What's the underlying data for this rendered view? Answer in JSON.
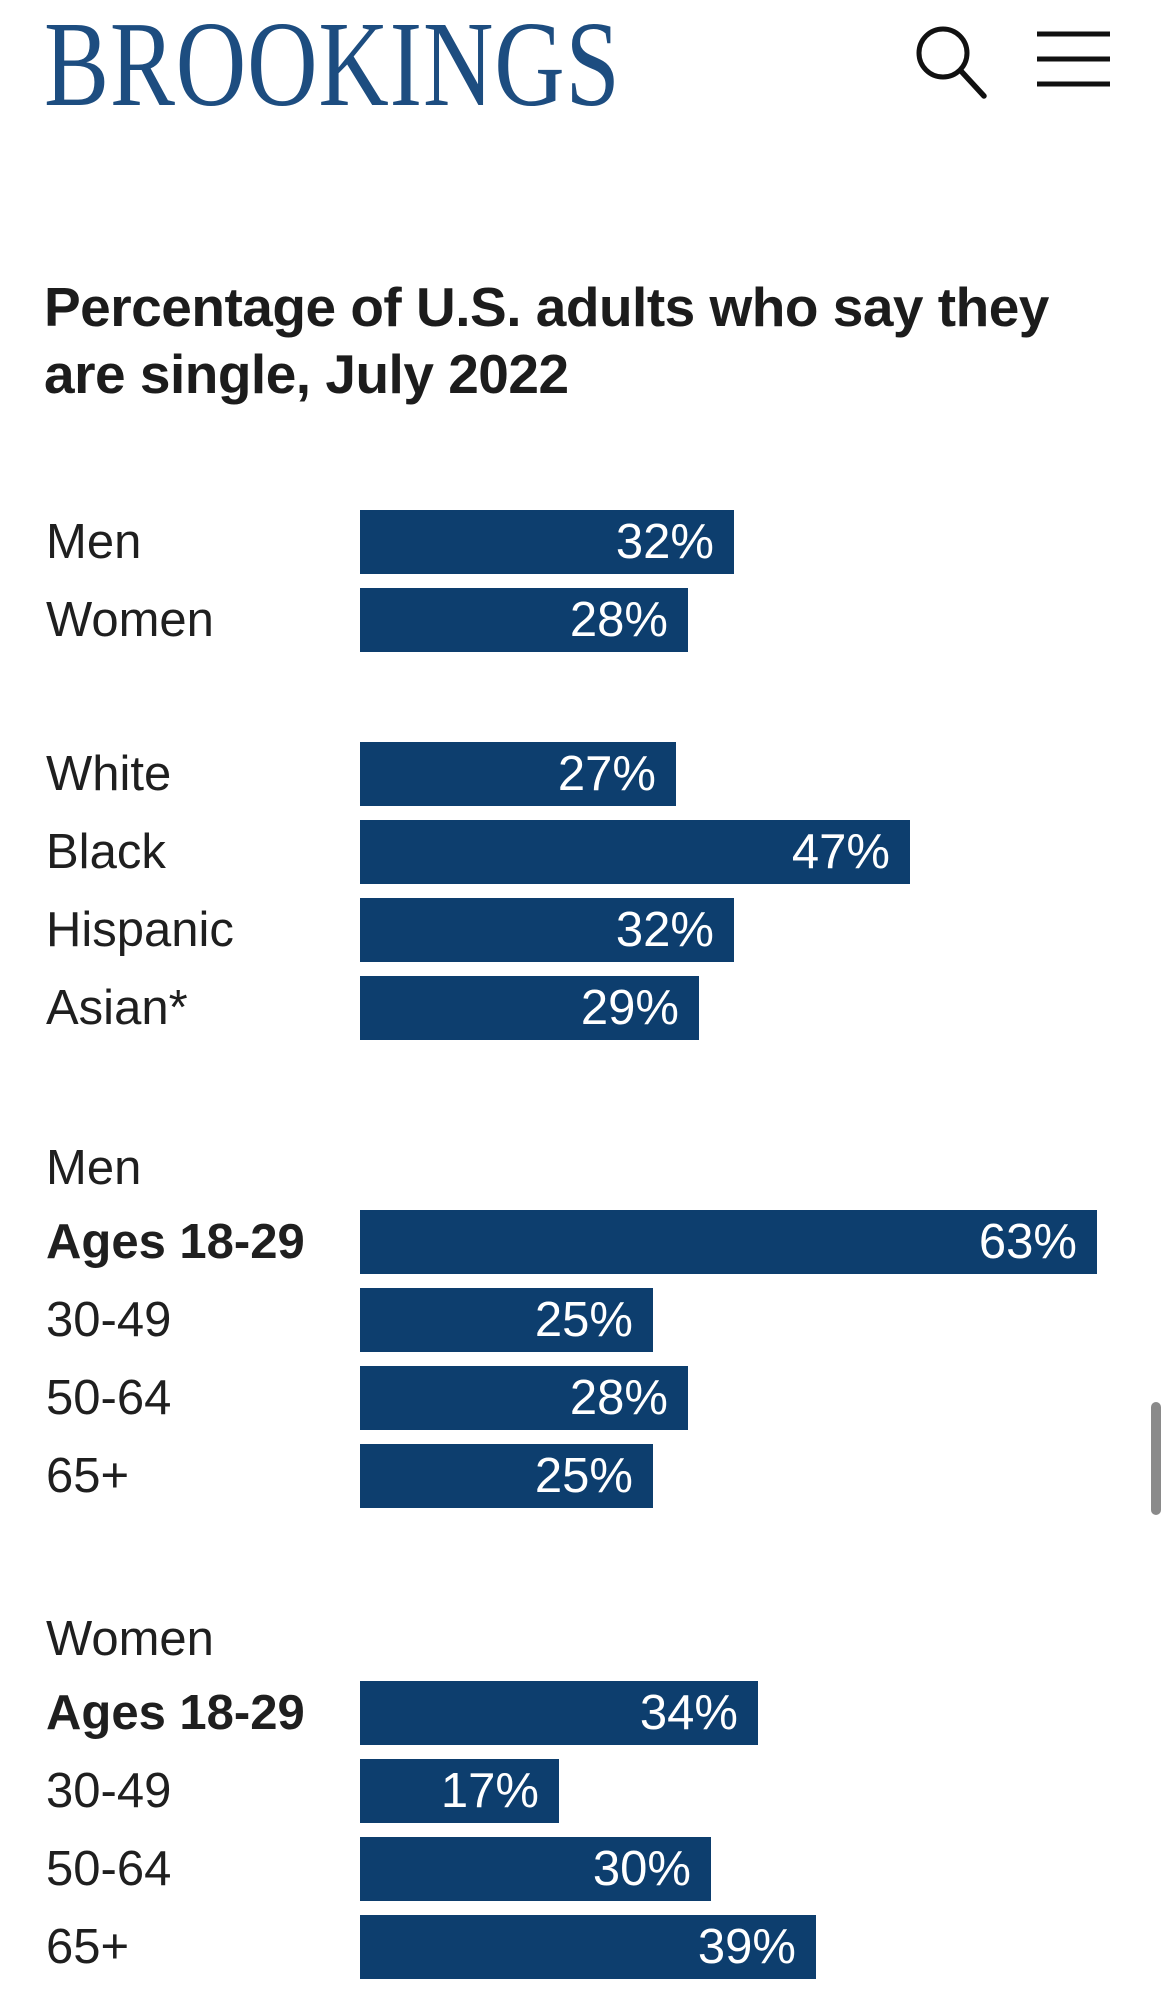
{
  "header": {
    "logo_text": "BROOKINGS",
    "search_icon": "search-icon",
    "menu_icon": "hamburger-menu-icon"
  },
  "title": {
    "full": "Percentage of U.S. adults who say they are single, July 2022",
    "line1": "Percentage of U.S. adults who say they",
    "line2": "are single, July 2022"
  },
  "chart_data": {
    "type": "bar",
    "orientation": "horizontal",
    "title": "Percentage of U.S. adults who say they are single, July 2022",
    "unit": "%",
    "xlim": [
      0,
      63
    ],
    "bar_color": "#0d3e6e",
    "value_label_color": "#ffffff",
    "value_label_position": "inside-right",
    "grid": false,
    "legend": false,
    "groups": [
      {
        "header": "",
        "rows": [
          {
            "label": "Men",
            "value": 32,
            "display": "32%",
            "bold": false
          },
          {
            "label": "Women",
            "value": 28,
            "display": "28%",
            "bold": false
          }
        ]
      },
      {
        "header": "",
        "rows": [
          {
            "label": "White",
            "value": 27,
            "display": "27%",
            "bold": false
          },
          {
            "label": "Black",
            "value": 47,
            "display": "47%",
            "bold": false
          },
          {
            "label": "Hispanic",
            "value": 32,
            "display": "32%",
            "bold": false
          },
          {
            "label": "Asian*",
            "value": 29,
            "display": "29%",
            "bold": false
          }
        ]
      },
      {
        "header": "Men",
        "rows": [
          {
            "label": "Ages 18-29",
            "value": 63,
            "display": "63%",
            "bold": true
          },
          {
            "label": "30-49",
            "value": 25,
            "display": "25%",
            "bold": false
          },
          {
            "label": "50-64",
            "value": 28,
            "display": "28%",
            "bold": false
          },
          {
            "label": "65+",
            "value": 25,
            "display": "25%",
            "bold": false
          }
        ]
      },
      {
        "header": "Women",
        "rows": [
          {
            "label": "Ages 18-29",
            "value": 34,
            "display": "34%",
            "bold": true
          },
          {
            "label": "30-49",
            "value": 17,
            "display": "17%",
            "bold": false
          },
          {
            "label": "50-64",
            "value": 30,
            "display": "30%",
            "bold": false
          },
          {
            "label": "65+",
            "value": 39,
            "display": "39%",
            "bold": false
          }
        ]
      }
    ]
  }
}
